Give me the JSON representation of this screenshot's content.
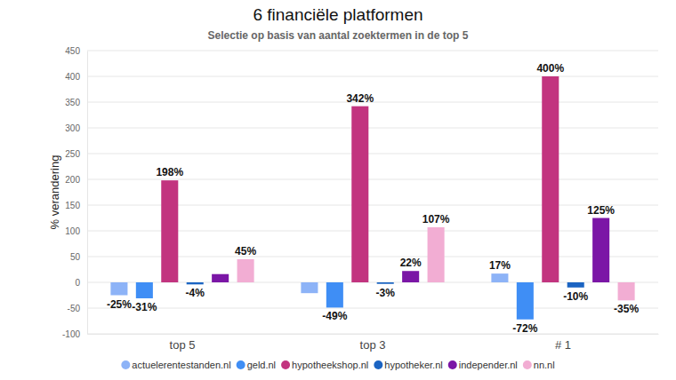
{
  "chart_data": {
    "type": "bar",
    "title": "6 financiële platformen",
    "subtitle": "Selectie op basis van aantal zoektermen in de top 5",
    "y_label": "% verandering",
    "categories": [
      "top 5",
      "top 3",
      "# 1"
    ],
    "series": [
      {
        "name": "actuelerentestanden.nl",
        "color": "#8db3f7",
        "values": [
          -25,
          -21,
          17
        ],
        "value_labels": [
          "-25%",
          null,
          "17%"
        ]
      },
      {
        "name": "geld.nl",
        "color": "#3f8ef5",
        "values": [
          -31,
          -49,
          -72
        ],
        "value_labels": [
          "-31%",
          "-49%",
          "-72%"
        ]
      },
      {
        "name": "hypotheekshop.nl",
        "color": "#c2347f",
        "values": [
          198,
          342,
          400
        ],
        "value_labels": [
          "198%",
          "342%",
          "400%"
        ]
      },
      {
        "name": "hypotheker.nl",
        "color": "#1b64c2",
        "values": [
          -4,
          -3,
          -10
        ],
        "value_labels": [
          "-4%",
          "-3%",
          "-10%"
        ]
      },
      {
        "name": "independer.nl",
        "color": "#7b16a6",
        "values": [
          16,
          22,
          125
        ],
        "value_labels": [
          null,
          "22%",
          "125%"
        ]
      },
      {
        "name": "nn.nl",
        "color": "#f2add3",
        "values": [
          45,
          107,
          -35
        ],
        "value_labels": [
          "45%",
          "107%",
          "-35%"
        ]
      }
    ],
    "ylim": [
      -100,
      450
    ],
    "yticks": [
      -100,
      -50,
      0,
      50,
      100,
      150,
      200,
      250,
      300,
      350,
      400,
      450
    ],
    "grid": true,
    "legend": "bottom",
    "data_labels": true
  }
}
